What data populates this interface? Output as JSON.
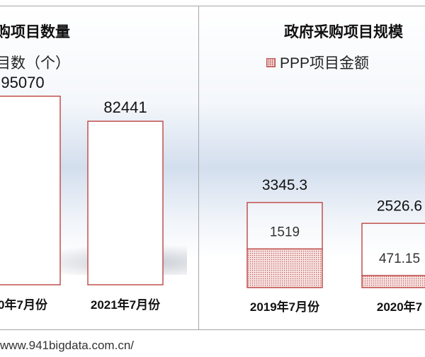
{
  "chart_data": [
    {
      "type": "bar",
      "title": "购项目数量",
      "legend": [
        "目数（个）"
      ],
      "categories": [
        "0年7月份",
        "2021年7月份"
      ],
      "series": [
        {
          "values": [
            95070,
            82441
          ]
        }
      ],
      "data_labels": [
        "95070",
        "82441"
      ],
      "bar_fill": "#ffffff",
      "bar_stroke": "#c0504d"
    },
    {
      "type": "bar",
      "title": "政府采购项目规模",
      "legend": [
        "PPP项目金额"
      ],
      "categories": [
        "2019年7月份",
        "2020年7"
      ],
      "series": [
        {
          "name": "PPP项目金额",
          "values": [
            1519,
            471.15
          ]
        },
        {
          "values": [
            1826.3,
            2055.45
          ]
        }
      ],
      "total_labels": [
        "3345.3",
        "2526.6"
      ],
      "segment_labels": [
        "1519",
        "471.15"
      ],
      "hatch_color": "#c0504d",
      "bar_stroke": "#c0504d"
    }
  ],
  "footer": "www.941bigdata.com.cn/"
}
